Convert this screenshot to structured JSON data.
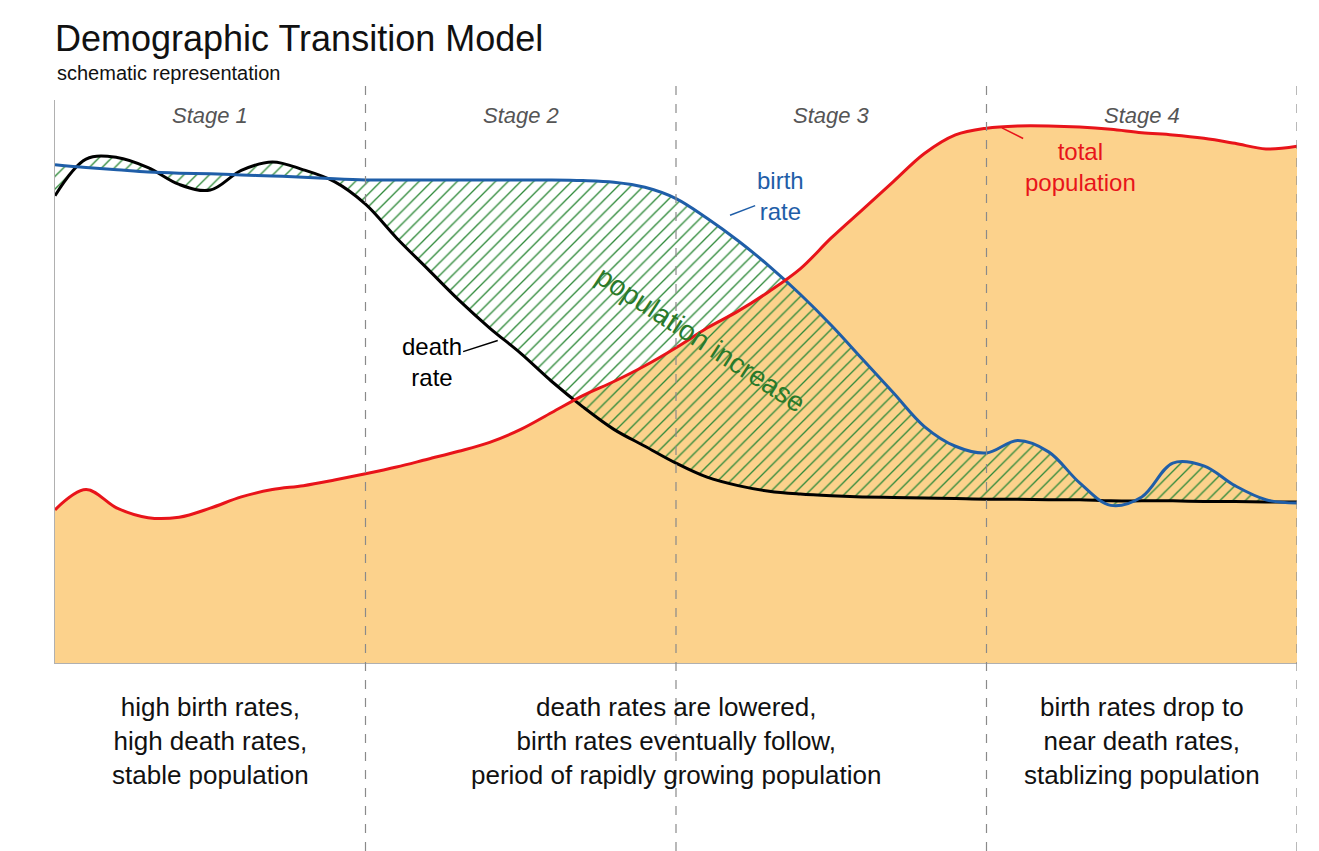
{
  "chart_data": {
    "type": "line",
    "title": "Demographic Transition Model",
    "subtitle": "schematic representation",
    "x": [
      0,
      2.5,
      5,
      7.5,
      10,
      12.5,
      15,
      17.5,
      20,
      22.5,
      25,
      27.5,
      30,
      32.5,
      35,
      37.5,
      40,
      42.5,
      45,
      47.5,
      50,
      52.5,
      55,
      57.5,
      60,
      62.5,
      65,
      67.5,
      70,
      72.5,
      75,
      77.5,
      80,
      82.5,
      85,
      87.5,
      90,
      92.5,
      95,
      97.5,
      100
    ],
    "series": [
      {
        "name": "birth rate",
        "color": "#1f5ea8",
        "type": "line",
        "values": [
          88.5,
          88,
          87.6,
          87.2,
          87,
          86.9,
          86.7,
          86.5,
          86.3,
          86,
          85.8,
          85.8,
          85.8,
          85.8,
          85.8,
          85.8,
          85.8,
          85.7,
          85.4,
          84.5,
          82.5,
          79,
          75,
          70.5,
          65.5,
          60,
          54,
          48,
          42,
          38.5,
          37.3,
          39.5,
          37.5,
          32,
          28,
          29.5,
          35.5,
          35,
          31.5,
          29,
          28.4
        ]
      },
      {
        "name": "death rate",
        "color": "#000000",
        "type": "line",
        "values": [
          83,
          89.5,
          89.8,
          88,
          85,
          84,
          87.5,
          89,
          87.6,
          85.5,
          81.5,
          75.5,
          70,
          64.5,
          59.5,
          55,
          50,
          45.5,
          41.5,
          38.5,
          35.5,
          33,
          31.5,
          30.5,
          30,
          29.7,
          29.5,
          29.4,
          29.3,
          29.2,
          29.1,
          29.1,
          29,
          29,
          28.8,
          28.8,
          28.8,
          28.7,
          28.7,
          28.6,
          28.6
        ]
      },
      {
        "name": "total population",
        "color": "#e8141a",
        "type": "area",
        "values": [
          27.2,
          30.8,
          27.5,
          25.8,
          25.9,
          27.5,
          29.5,
          30.8,
          31.5,
          32.5,
          33.6,
          34.8,
          36.2,
          37.6,
          39.2,
          41.5,
          44.5,
          47.5,
          50,
          52.8,
          56,
          59.5,
          62.5,
          66,
          70,
          75.5,
          80.5,
          85.5,
          90.5,
          93.8,
          95,
          95.4,
          95.4,
          95.2,
          94.8,
          94.2,
          93.8,
          93.2,
          92.3,
          91.3,
          91.8
        ]
      }
    ],
    "xlim": [
      0,
      100
    ],
    "ylim": [
      0,
      100
    ],
    "tick_labels": false,
    "grid": false,
    "stages": [
      "Stage 1",
      "Stage 2",
      "Stage 3",
      "Stage 4"
    ],
    "stage_bounds": [
      25,
      50,
      75,
      100
    ],
    "descriptions": [
      "high birth rates,\nhigh death rates,\nstable population",
      "death rates are lowered,\nbirth rates eventually follow,\nperiod of rapidly growing population",
      "birth rates drop to\nnear death rates,\nstablizing population"
    ],
    "annotations": [
      "population increase"
    ]
  }
}
